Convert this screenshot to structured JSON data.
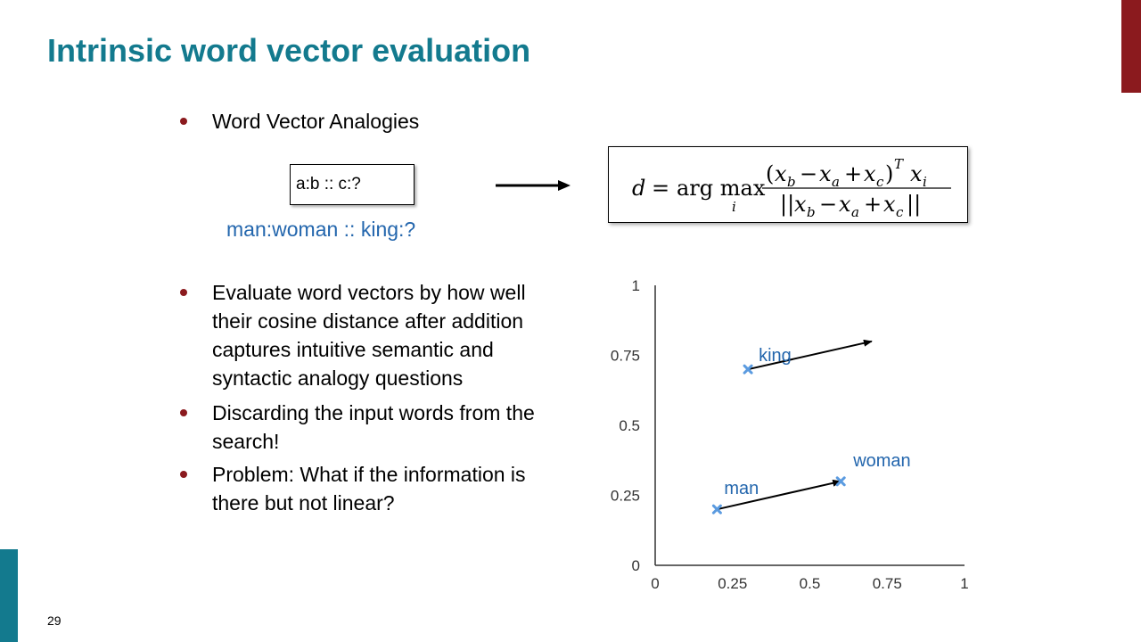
{
  "slide": {
    "title": "Intrinsic word vector evaluation",
    "page_number": "29"
  },
  "bullets": [
    {
      "text": "Word Vector Analogies"
    },
    {
      "lines": [
        "Evaluate word vectors by how well",
        "their cosine distance after addition",
        "captures intuitive semantic and",
        "syntactic analogy questions"
      ]
    },
    {
      "lines": [
        "Discarding the input words from the",
        "search!"
      ]
    },
    {
      "lines": [
        "Problem: What if the information is",
        "there but not linear?"
      ]
    }
  ],
  "analogy": {
    "pattern": "a:b :: c:?",
    "example": "man:woman :: king:?"
  },
  "formula": {
    "lhs": "d",
    "operator": "arg max",
    "index": "i",
    "text": "d = arg max_i (x_b − x_a + x_c)^T x_i / ||x_b − x_a + x_c||"
  },
  "colors": {
    "title": "#137a8e",
    "bullet": "#8b1a1e",
    "accent_blue": "#2366ad",
    "point": "#5b9be0"
  },
  "chart_data": {
    "type": "scatter",
    "xlim": [
      0,
      1
    ],
    "ylim": [
      0,
      1
    ],
    "x_ticks": [
      "0",
      "0.25",
      "0.5",
      "0.75",
      "1"
    ],
    "y_ticks": [
      "0",
      "0.25",
      "0.5",
      "0.75",
      "1"
    ],
    "points": [
      {
        "label": "man",
        "x": 0.2,
        "y": 0.2
      },
      {
        "label": "woman",
        "x": 0.6,
        "y": 0.3
      },
      {
        "label": "king",
        "x": 0.3,
        "y": 0.7
      }
    ],
    "arrows": [
      {
        "from": [
          0.2,
          0.2
        ],
        "to": [
          0.6,
          0.3
        ]
      },
      {
        "from": [
          0.3,
          0.7
        ],
        "to": [
          0.7,
          0.8
        ]
      }
    ]
  }
}
